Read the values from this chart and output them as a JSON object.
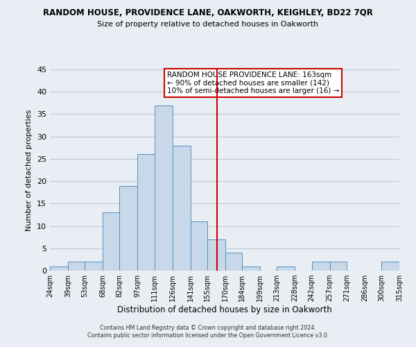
{
  "title": "RANDOM HOUSE, PROVIDENCE LANE, OAKWORTH, KEIGHLEY, BD22 7QR",
  "subtitle": "Size of property relative to detached houses in Oakworth",
  "xlabel": "Distribution of detached houses by size in Oakworth",
  "ylabel": "Number of detached properties",
  "footer_line1": "Contains HM Land Registry data © Crown copyright and database right 2024.",
  "footer_line2": "Contains public sector information licensed under the Open Government Licence v3.0.",
  "annotation_line1": "RANDOM HOUSE PROVIDENCE LANE: 163sqm",
  "annotation_line2": "← 90% of detached houses are smaller (142)",
  "annotation_line3": "10% of semi-detached houses are larger (16) →",
  "bar_edges": [
    24,
    39,
    53,
    68,
    82,
    97,
    111,
    126,
    141,
    155,
    170,
    184,
    199,
    213,
    228,
    242,
    257,
    271,
    286,
    300,
    315
  ],
  "bar_heights": [
    1,
    2,
    2,
    13,
    19,
    26,
    37,
    28,
    11,
    7,
    4,
    1,
    0,
    1,
    0,
    2,
    2,
    0,
    0,
    2
  ],
  "bar_color": "#c8d8e8",
  "bar_edgecolor": "#5090c0",
  "reference_line_x": 163,
  "reference_line_color": "#cc0000",
  "ylim": [
    0,
    45
  ],
  "yticks": [
    0,
    5,
    10,
    15,
    20,
    25,
    30,
    35,
    40,
    45
  ],
  "xtick_labels": [
    "24sqm",
    "39sqm",
    "53sqm",
    "68sqm",
    "82sqm",
    "97sqm",
    "111sqm",
    "126sqm",
    "141sqm",
    "155sqm",
    "170sqm",
    "184sqm",
    "199sqm",
    "213sqm",
    "228sqm",
    "242sqm",
    "257sqm",
    "271sqm",
    "286sqm",
    "300sqm",
    "315sqm"
  ],
  "grid_color": "#c0c8d8",
  "background_color": "#e8eef4"
}
